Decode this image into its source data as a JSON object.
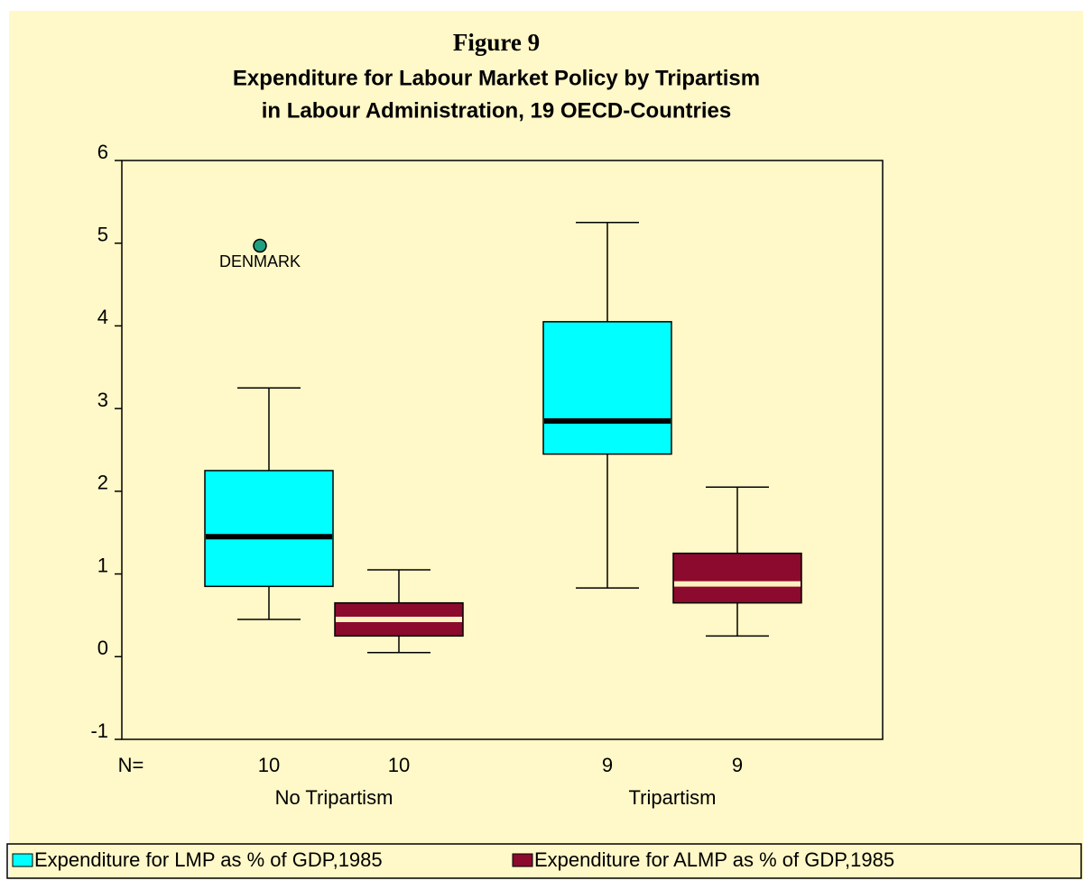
{
  "chart_data": {
    "type": "box",
    "title": "Figure 9",
    "subtitle": [
      "Expenditure for Labour Market Policy by Tripartism",
      "in Labour Administration, 19 OECD-Countries"
    ],
    "categories": [
      "No Tripartism",
      "Tripartism"
    ],
    "n_label": "N=",
    "ylim": [
      -1,
      6
    ],
    "yticks": [
      -1,
      0,
      1,
      2,
      3,
      4,
      5,
      6
    ],
    "series": [
      {
        "name": "Expenditure for LMP as % of GDP,1985",
        "color": "#00ffff",
        "median_color": "#000000",
        "n": [
          10,
          9
        ],
        "min": [
          0.45,
          0.83
        ],
        "q1": [
          0.85,
          2.45
        ],
        "median": [
          1.45,
          2.85
        ],
        "q3": [
          2.25,
          4.05
        ],
        "max": [
          3.25,
          5.25
        ],
        "outliers": [
          {
            "category": 0,
            "value": 4.97,
            "label": "DENMARK"
          }
        ]
      },
      {
        "name": "Expenditure for ALMP as % of GDP,1985",
        "color": "#8b0a2e",
        "median_color": "#fff0c0",
        "n": [
          10,
          9
        ],
        "min": [
          0.05,
          0.25
        ],
        "q1": [
          0.25,
          0.65
        ],
        "median": [
          0.45,
          0.88
        ],
        "q3": [
          0.65,
          1.25
        ],
        "max": [
          1.05,
          2.05
        ]
      }
    ]
  }
}
